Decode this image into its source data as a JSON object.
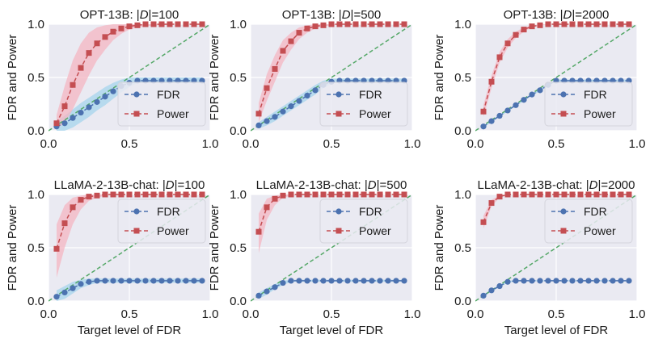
{
  "colors": {
    "panel_bg": "#eaeaf2",
    "grid": "#ffffff",
    "fdr": "#4c72b0",
    "fdr_band": "#a6d4ec",
    "power": "#c44e52",
    "power_band": "#f4b6c2",
    "diagonal": "#55a868"
  },
  "chart_data": [
    {
      "type": "line",
      "title": "OPT-13B: |D|=100",
      "title_prefix": "OPT-13B: |",
      "title_var": "D",
      "title_suffix": "|=100",
      "xlabel": "",
      "ylabel": "FDR and Power",
      "xlim": [
        0,
        1
      ],
      "ylim": [
        0,
        1
      ],
      "xticks": [
        "0.0",
        "0.5",
        "1.0"
      ],
      "yticks": [
        "0.0",
        "0.5",
        "1.0"
      ],
      "legend": [
        "FDR",
        "Power"
      ],
      "legend_position": "lower-right",
      "x": [
        0.05,
        0.1,
        0.15,
        0.2,
        0.25,
        0.3,
        0.35,
        0.4,
        0.45,
        0.5,
        0.55,
        0.6,
        0.65,
        0.7,
        0.75,
        0.8,
        0.85,
        0.9,
        0.95
      ],
      "series": [
        {
          "name": "FDR",
          "values": [
            0.04,
            0.07,
            0.12,
            0.17,
            0.22,
            0.27,
            0.32,
            0.37,
            0.42,
            0.45,
            0.47,
            0.47,
            0.47,
            0.47,
            0.47,
            0.47,
            0.47,
            0.47,
            0.47
          ],
          "band_low": [
            0.0,
            0.0,
            0.03,
            0.08,
            0.13,
            0.19,
            0.24,
            0.3,
            0.36,
            0.41,
            0.45,
            0.45,
            0.45,
            0.45,
            0.45,
            0.45,
            0.45,
            0.45,
            0.45
          ],
          "band_high": [
            0.09,
            0.14,
            0.2,
            0.26,
            0.31,
            0.36,
            0.41,
            0.45,
            0.48,
            0.5,
            0.5,
            0.5,
            0.5,
            0.5,
            0.5,
            0.5,
            0.5,
            0.5,
            0.5
          ]
        },
        {
          "name": "Power",
          "values": [
            0.07,
            0.23,
            0.43,
            0.59,
            0.73,
            0.82,
            0.88,
            0.93,
            0.96,
            0.98,
            0.99,
            1.0,
            1.0,
            1.0,
            1.0,
            1.0,
            1.0,
            1.0,
            1.0
          ],
          "band_low": [
            0.02,
            0.07,
            0.2,
            0.36,
            0.52,
            0.66,
            0.76,
            0.85,
            0.91,
            0.95,
            0.97,
            0.98,
            0.99,
            0.99,
            1.0,
            1.0,
            1.0,
            1.0,
            1.0
          ],
          "band_high": [
            0.15,
            0.42,
            0.66,
            0.82,
            0.92,
            0.97,
            0.99,
            1.0,
            1.0,
            1.0,
            1.0,
            1.0,
            1.0,
            1.0,
            1.0,
            1.0,
            1.0,
            1.0,
            1.0
          ]
        }
      ]
    },
    {
      "type": "line",
      "title": "OPT-13B: |D|=500",
      "title_prefix": "OPT-13B: |",
      "title_var": "D",
      "title_suffix": "|=500",
      "xlabel": "",
      "ylabel": "FDR and Power",
      "xlim": [
        0,
        1
      ],
      "ylim": [
        0,
        1
      ],
      "xticks": [
        "0.0",
        "0.5",
        "1.0"
      ],
      "yticks": [
        "0.0",
        "0.5",
        "1.0"
      ],
      "legend": [
        "FDR",
        "Power"
      ],
      "legend_position": "lower-right",
      "x": [
        0.05,
        0.1,
        0.15,
        0.2,
        0.25,
        0.3,
        0.35,
        0.4,
        0.45,
        0.5,
        0.55,
        0.6,
        0.65,
        0.7,
        0.75,
        0.8,
        0.85,
        0.9,
        0.95
      ],
      "series": [
        {
          "name": "FDR",
          "values": [
            0.05,
            0.09,
            0.13,
            0.18,
            0.23,
            0.28,
            0.33,
            0.38,
            0.43,
            0.46,
            0.47,
            0.47,
            0.47,
            0.47,
            0.47,
            0.47,
            0.47,
            0.47,
            0.47
          ],
          "band_low": [
            0.02,
            0.05,
            0.09,
            0.14,
            0.19,
            0.24,
            0.29,
            0.34,
            0.4,
            0.44,
            0.46,
            0.46,
            0.46,
            0.46,
            0.46,
            0.46,
            0.46,
            0.46,
            0.46
          ],
          "band_high": [
            0.08,
            0.13,
            0.18,
            0.23,
            0.28,
            0.33,
            0.38,
            0.43,
            0.47,
            0.49,
            0.49,
            0.49,
            0.49,
            0.49,
            0.49,
            0.49,
            0.49,
            0.49,
            0.49
          ]
        },
        {
          "name": "Power",
          "values": [
            0.16,
            0.4,
            0.58,
            0.75,
            0.84,
            0.92,
            0.96,
            0.98,
            0.99,
            1.0,
            1.0,
            1.0,
            1.0,
            1.0,
            1.0,
            1.0,
            1.0,
            1.0,
            1.0
          ],
          "band_low": [
            0.08,
            0.28,
            0.46,
            0.64,
            0.76,
            0.86,
            0.92,
            0.96,
            0.98,
            0.99,
            1.0,
            1.0,
            1.0,
            1.0,
            1.0,
            1.0,
            1.0,
            1.0,
            1.0
          ],
          "band_high": [
            0.26,
            0.53,
            0.71,
            0.85,
            0.92,
            0.97,
            0.99,
            1.0,
            1.0,
            1.0,
            1.0,
            1.0,
            1.0,
            1.0,
            1.0,
            1.0,
            1.0,
            1.0,
            1.0
          ]
        }
      ]
    },
    {
      "type": "line",
      "title": "OPT-13B: |D|=2000",
      "title_prefix": "OPT-13B: |",
      "title_var": "D",
      "title_suffix": "|=2000",
      "xlabel": "",
      "ylabel": "FDR and Power",
      "xlim": [
        0,
        1
      ],
      "ylim": [
        0,
        1
      ],
      "xticks": [
        "0.0",
        "0.5",
        "1.0"
      ],
      "yticks": [
        "0.0",
        "0.5",
        "1.0"
      ],
      "legend": [
        "FDR",
        "Power"
      ],
      "legend_position": "lower-right",
      "x": [
        0.05,
        0.1,
        0.15,
        0.2,
        0.25,
        0.3,
        0.35,
        0.4,
        0.45,
        0.5,
        0.55,
        0.6,
        0.65,
        0.7,
        0.75,
        0.8,
        0.85,
        0.9,
        0.95
      ],
      "series": [
        {
          "name": "FDR",
          "values": [
            0.04,
            0.09,
            0.14,
            0.19,
            0.24,
            0.29,
            0.34,
            0.38,
            0.43,
            0.47,
            0.47,
            0.47,
            0.47,
            0.47,
            0.47,
            0.47,
            0.47,
            0.47,
            0.47
          ],
          "band_low": [
            0.03,
            0.08,
            0.13,
            0.18,
            0.23,
            0.28,
            0.33,
            0.37,
            0.42,
            0.46,
            0.46,
            0.46,
            0.46,
            0.46,
            0.46,
            0.46,
            0.46,
            0.46,
            0.46
          ],
          "band_high": [
            0.05,
            0.1,
            0.15,
            0.2,
            0.25,
            0.3,
            0.35,
            0.39,
            0.44,
            0.48,
            0.48,
            0.48,
            0.48,
            0.48,
            0.48,
            0.48,
            0.48,
            0.48,
            0.48
          ]
        },
        {
          "name": "Power",
          "values": [
            0.18,
            0.46,
            0.69,
            0.82,
            0.9,
            0.95,
            0.98,
            0.99,
            1.0,
            1.0,
            1.0,
            1.0,
            1.0,
            1.0,
            1.0,
            1.0,
            1.0,
            1.0,
            1.0
          ],
          "band_low": [
            0.13,
            0.4,
            0.64,
            0.78,
            0.87,
            0.93,
            0.97,
            0.99,
            1.0,
            1.0,
            1.0,
            1.0,
            1.0,
            1.0,
            1.0,
            1.0,
            1.0,
            1.0,
            1.0
          ],
          "band_high": [
            0.24,
            0.52,
            0.74,
            0.86,
            0.93,
            0.97,
            0.99,
            1.0,
            1.0,
            1.0,
            1.0,
            1.0,
            1.0,
            1.0,
            1.0,
            1.0,
            1.0,
            1.0,
            1.0
          ]
        }
      ]
    },
    {
      "type": "line",
      "title": "LLaMA-2-13B-chat: |D|=100",
      "title_prefix": "LLaMA-2-13B-chat: |",
      "title_var": "D",
      "title_suffix": "|=100",
      "xlabel": "Target level of FDR",
      "ylabel": "FDR and Power",
      "xlim": [
        0,
        1
      ],
      "ylim": [
        0,
        1
      ],
      "xticks": [
        "0.0",
        "0.5",
        "1.0"
      ],
      "yticks": [
        "0.0",
        "0.5",
        "1.0"
      ],
      "legend": [
        "FDR",
        "Power"
      ],
      "legend_position": "upper-right",
      "x": [
        0.05,
        0.1,
        0.15,
        0.2,
        0.25,
        0.3,
        0.35,
        0.4,
        0.45,
        0.5,
        0.55,
        0.6,
        0.65,
        0.7,
        0.75,
        0.8,
        0.85,
        0.9,
        0.95
      ],
      "series": [
        {
          "name": "FDR",
          "values": [
            0.04,
            0.08,
            0.12,
            0.16,
            0.18,
            0.19,
            0.19,
            0.19,
            0.19,
            0.19,
            0.19,
            0.19,
            0.19,
            0.19,
            0.19,
            0.19,
            0.19,
            0.19,
            0.19
          ],
          "band_low": [
            0.0,
            0.02,
            0.07,
            0.12,
            0.15,
            0.17,
            0.17,
            0.17,
            0.17,
            0.17,
            0.17,
            0.17,
            0.17,
            0.17,
            0.17,
            0.17,
            0.17,
            0.17,
            0.17
          ],
          "band_high": [
            0.1,
            0.14,
            0.18,
            0.2,
            0.21,
            0.21,
            0.21,
            0.21,
            0.21,
            0.21,
            0.21,
            0.21,
            0.21,
            0.21,
            0.21,
            0.21,
            0.21,
            0.21,
            0.21
          ]
        },
        {
          "name": "Power",
          "values": [
            0.49,
            0.73,
            0.88,
            0.95,
            0.98,
            0.99,
            1.0,
            1.0,
            1.0,
            1.0,
            1.0,
            1.0,
            1.0,
            1.0,
            1.0,
            1.0,
            1.0,
            1.0,
            1.0
          ],
          "band_low": [
            0.22,
            0.5,
            0.72,
            0.86,
            0.94,
            0.97,
            0.99,
            1.0,
            1.0,
            1.0,
            1.0,
            1.0,
            1.0,
            1.0,
            1.0,
            1.0,
            1.0,
            1.0,
            1.0
          ],
          "band_high": [
            0.72,
            0.9,
            0.97,
            0.99,
            1.0,
            1.0,
            1.0,
            1.0,
            1.0,
            1.0,
            1.0,
            1.0,
            1.0,
            1.0,
            1.0,
            1.0,
            1.0,
            1.0,
            1.0
          ]
        }
      ]
    },
    {
      "type": "line",
      "title": "LLaMA-2-13B-chat: |D|=500",
      "title_prefix": "LLaMA-2-13B-chat: |",
      "title_var": "D",
      "title_suffix": "|=500",
      "xlabel": "Target level of FDR",
      "ylabel": "FDR and Power",
      "xlim": [
        0,
        1
      ],
      "ylim": [
        0,
        1
      ],
      "xticks": [
        "0.0",
        "0.5",
        "1.0"
      ],
      "yticks": [
        "0.0",
        "0.5",
        "1.0"
      ],
      "legend": [
        "FDR",
        "Power"
      ],
      "legend_position": "upper-right",
      "x": [
        0.05,
        0.1,
        0.15,
        0.2,
        0.25,
        0.3,
        0.35,
        0.4,
        0.45,
        0.5,
        0.55,
        0.6,
        0.65,
        0.7,
        0.75,
        0.8,
        0.85,
        0.9,
        0.95
      ],
      "series": [
        {
          "name": "FDR",
          "values": [
            0.05,
            0.09,
            0.13,
            0.17,
            0.19,
            0.19,
            0.19,
            0.19,
            0.19,
            0.19,
            0.19,
            0.19,
            0.19,
            0.19,
            0.19,
            0.19,
            0.19,
            0.19,
            0.19
          ],
          "band_low": [
            0.02,
            0.06,
            0.11,
            0.15,
            0.18,
            0.18,
            0.18,
            0.18,
            0.18,
            0.18,
            0.18,
            0.18,
            0.18,
            0.18,
            0.18,
            0.18,
            0.18,
            0.18,
            0.18
          ],
          "band_high": [
            0.08,
            0.12,
            0.16,
            0.19,
            0.2,
            0.2,
            0.2,
            0.2,
            0.2,
            0.2,
            0.2,
            0.2,
            0.2,
            0.2,
            0.2,
            0.2,
            0.2,
            0.2,
            0.2
          ]
        },
        {
          "name": "Power",
          "values": [
            0.65,
            0.88,
            0.96,
            0.99,
            1.0,
            1.0,
            1.0,
            1.0,
            1.0,
            1.0,
            1.0,
            1.0,
            1.0,
            1.0,
            1.0,
            1.0,
            1.0,
            1.0,
            1.0
          ],
          "band_low": [
            0.45,
            0.76,
            0.9,
            0.97,
            0.99,
            1.0,
            1.0,
            1.0,
            1.0,
            1.0,
            1.0,
            1.0,
            1.0,
            1.0,
            1.0,
            1.0,
            1.0,
            1.0,
            1.0
          ],
          "band_high": [
            0.82,
            0.96,
            0.99,
            1.0,
            1.0,
            1.0,
            1.0,
            1.0,
            1.0,
            1.0,
            1.0,
            1.0,
            1.0,
            1.0,
            1.0,
            1.0,
            1.0,
            1.0,
            1.0
          ]
        }
      ]
    },
    {
      "type": "line",
      "title": "LLaMA-2-13B-chat: |D|=2000",
      "title_prefix": "LLaMA-2-13B-chat: |",
      "title_var": "D",
      "title_suffix": "|=2000",
      "xlabel": "Target level of FDR",
      "ylabel": "FDR and Power",
      "xlim": [
        0,
        1
      ],
      "ylim": [
        0,
        1
      ],
      "xticks": [
        "0.0",
        "0.5",
        "1.0"
      ],
      "yticks": [
        "0.0",
        "0.5",
        "1.0"
      ],
      "legend": [
        "FDR",
        "Power"
      ],
      "legend_position": "upper-right",
      "x": [
        0.05,
        0.1,
        0.15,
        0.2,
        0.25,
        0.3,
        0.35,
        0.4,
        0.45,
        0.5,
        0.55,
        0.6,
        0.65,
        0.7,
        0.75,
        0.8,
        0.85,
        0.9,
        0.95
      ],
      "series": [
        {
          "name": "FDR",
          "values": [
            0.05,
            0.1,
            0.14,
            0.18,
            0.19,
            0.19,
            0.19,
            0.19,
            0.19,
            0.19,
            0.19,
            0.19,
            0.19,
            0.19,
            0.19,
            0.19,
            0.19,
            0.19,
            0.19
          ],
          "band_low": [
            0.04,
            0.09,
            0.13,
            0.17,
            0.185,
            0.185,
            0.185,
            0.185,
            0.185,
            0.185,
            0.185,
            0.185,
            0.185,
            0.185,
            0.185,
            0.185,
            0.185,
            0.185,
            0.185
          ],
          "band_high": [
            0.06,
            0.11,
            0.15,
            0.19,
            0.195,
            0.195,
            0.195,
            0.195,
            0.195,
            0.195,
            0.195,
            0.195,
            0.195,
            0.195,
            0.195,
            0.195,
            0.195,
            0.195,
            0.195
          ]
        },
        {
          "name": "Power",
          "values": [
            0.74,
            0.92,
            0.98,
            1.0,
            1.0,
            1.0,
            1.0,
            1.0,
            1.0,
            1.0,
            1.0,
            1.0,
            1.0,
            1.0,
            1.0,
            1.0,
            1.0,
            1.0,
            1.0
          ],
          "band_low": [
            0.68,
            0.89,
            0.97,
            1.0,
            1.0,
            1.0,
            1.0,
            1.0,
            1.0,
            1.0,
            1.0,
            1.0,
            1.0,
            1.0,
            1.0,
            1.0,
            1.0,
            1.0,
            1.0
          ],
          "band_high": [
            0.8,
            0.95,
            0.99,
            1.0,
            1.0,
            1.0,
            1.0,
            1.0,
            1.0,
            1.0,
            1.0,
            1.0,
            1.0,
            1.0,
            1.0,
            1.0,
            1.0,
            1.0,
            1.0
          ]
        }
      ]
    }
  ]
}
